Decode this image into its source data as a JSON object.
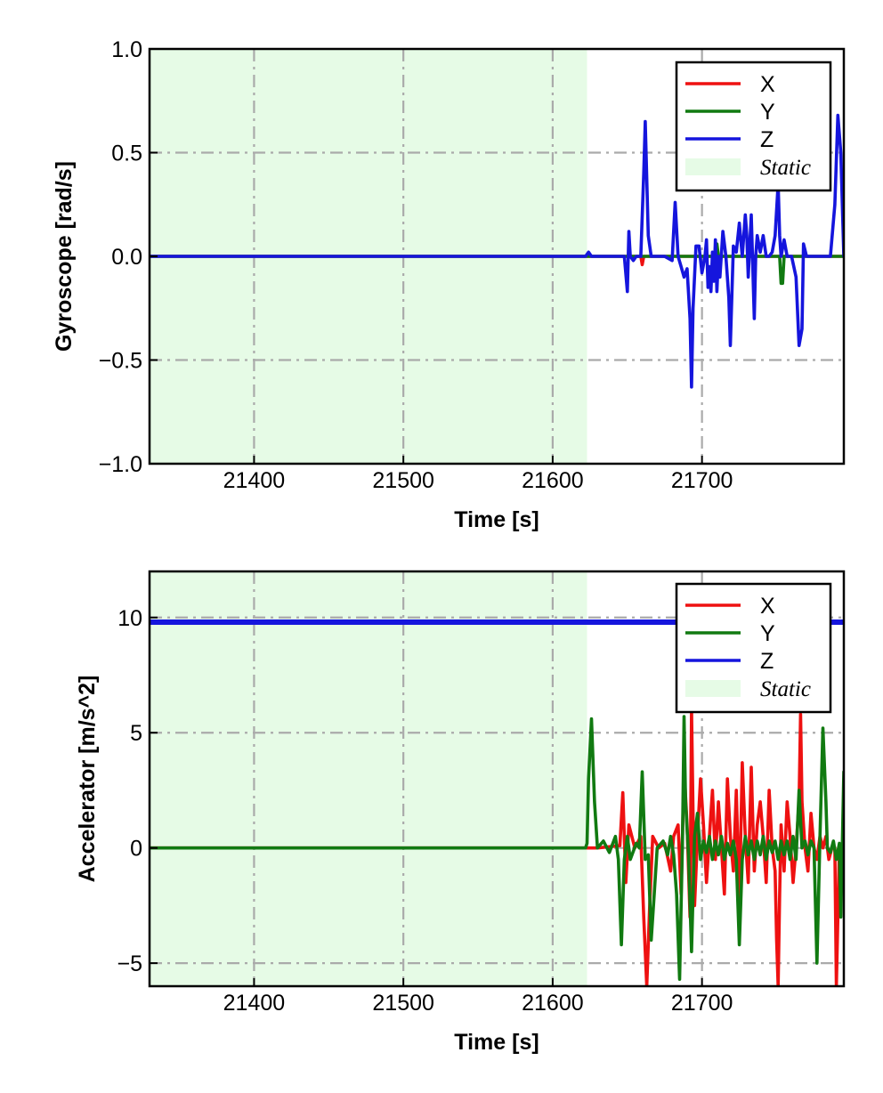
{
  "colors": {
    "x": "#ee1111",
    "y": "#117a11",
    "z": "#1515dd",
    "static": "#e6fbe6",
    "grid": "#aaaaaa"
  },
  "chart_data": [
    {
      "type": "line",
      "xlabel": "Time [s]",
      "ylabel": "Gyroscope [rad/s]",
      "xlim": [
        21330,
        21795
      ],
      "ylim": [
        -1.0,
        1.0
      ],
      "xticks": [
        21400,
        21500,
        21600,
        21700
      ],
      "xtick_labels": [
        "21400",
        "21500",
        "21600",
        "21700"
      ],
      "yticks": [
        1.0,
        0.5,
        0.0,
        -0.5,
        -1.0
      ],
      "ytick_labels": [
        "1.0",
        "0.5",
        "0.0",
        "−0.5",
        "−1.0"
      ],
      "grid": true,
      "legend_position": "top-right",
      "static_region": [
        21330,
        21623
      ],
      "legend": [
        "X",
        "Y",
        "Z",
        "Static"
      ],
      "series": [
        {
          "name": "X",
          "x": [
            21330,
            21623,
            21659,
            21660,
            21661,
            21662,
            21700,
            21750,
            21795
          ],
          "y": [
            0.0,
            0.0,
            0.0,
            -0.04,
            0.0,
            0.0,
            0.0,
            0.0,
            0.0
          ]
        },
        {
          "name": "Y",
          "x": [
            21330,
            21623,
            21709,
            21710,
            21711,
            21752,
            21753,
            21754,
            21755,
            21795
          ],
          "y": [
            0.0,
            0.0,
            0.0,
            0.06,
            0.0,
            0.0,
            -0.13,
            -0.13,
            0.0,
            0.0
          ]
        },
        {
          "name": "Z",
          "x": [
            21330,
            21622,
            21624,
            21626,
            21648,
            21650,
            21651,
            21652,
            21654,
            21656,
            21659,
            21661,
            21662,
            21664,
            21666,
            21670,
            21675,
            21680,
            21682,
            21684,
            21686,
            21688,
            21690,
            21692,
            21693,
            21694,
            21696,
            21698,
            21700,
            21702,
            21703,
            21704,
            21705,
            21706,
            21707,
            21708,
            21709,
            21710,
            21711,
            21712,
            21714,
            21716,
            21718,
            21719,
            21721,
            21723,
            21725,
            21727,
            21729,
            21730,
            21731,
            21733,
            21735,
            21736,
            21737,
            21739,
            21741,
            21743,
            21745,
            21747,
            21749,
            21751,
            21752,
            21753,
            21755,
            21757,
            21760,
            21763,
            21765,
            21767,
            21768,
            21770,
            21772,
            21774,
            21778,
            21782,
            21786,
            21789,
            21791,
            21793,
            21795
          ],
          "y": [
            0.0,
            0.0,
            0.02,
            0.0,
            0.0,
            -0.17,
            0.12,
            0.0,
            -0.02,
            0.0,
            0.0,
            0.4,
            0.65,
            0.1,
            0.0,
            0.0,
            0.0,
            -0.02,
            0.26,
            0.0,
            -0.05,
            -0.1,
            -0.06,
            -0.3,
            -0.63,
            -0.25,
            0.05,
            0.05,
            -0.08,
            0.0,
            0.08,
            -0.15,
            -0.05,
            -0.17,
            0.02,
            -0.12,
            0.08,
            -0.17,
            0.0,
            -0.1,
            0.12,
            0.0,
            -0.2,
            -0.43,
            0.05,
            0.02,
            0.16,
            0.0,
            0.2,
            0.1,
            -0.1,
            0.2,
            -0.3,
            0.0,
            0.1,
            0.02,
            0.1,
            0.0,
            0.0,
            0.02,
            0.1,
            0.35,
            0.1,
            0.0,
            0.08,
            0.0,
            0.0,
            -0.1,
            -0.43,
            -0.35,
            0.06,
            0.0,
            0.0,
            0.0,
            0.0,
            0.0,
            0.0,
            0.25,
            0.68,
            0.5,
            0.0
          ]
        }
      ]
    },
    {
      "type": "line",
      "xlabel": "Time [s]",
      "ylabel": "Accelerator [m/s^2]",
      "xlim": [
        21330,
        21795
      ],
      "ylim": [
        -6.0,
        12.0
      ],
      "xticks": [
        21400,
        21500,
        21600,
        21700
      ],
      "xtick_labels": [
        "21400",
        "21500",
        "21600",
        "21700"
      ],
      "yticks": [
        10,
        5,
        0,
        -5
      ],
      "ytick_labels": [
        "10",
        "5",
        "0",
        "−5"
      ],
      "grid": true,
      "legend_position": "top-right",
      "static_region": [
        21330,
        21623
      ],
      "legend": [
        "X",
        "Y",
        "Z",
        "Static"
      ],
      "series": [
        {
          "name": "X",
          "x": [
            21330,
            21623,
            21630,
            21645,
            21647,
            21649,
            21651,
            21655,
            21659,
            21661,
            21663,
            21665,
            21667,
            21671,
            21675,
            21679,
            21681,
            21684,
            21686,
            21688,
            21690,
            21692,
            21693,
            21694,
            21695,
            21697,
            21699,
            21701,
            21703,
            21705,
            21707,
            21709,
            21711,
            21713,
            21715,
            21717,
            21719,
            21721,
            21723,
            21725,
            21727,
            21729,
            21731,
            21733,
            21735,
            21737,
            21739,
            21741,
            21743,
            21745,
            21747,
            21749,
            21750,
            21751,
            21752,
            21753,
            21755,
            21757,
            21759,
            21761,
            21763,
            21765,
            21766,
            21767,
            21769,
            21771,
            21773,
            21775,
            21777,
            21779,
            21781,
            21783,
            21785,
            21787,
            21789,
            21790,
            21791,
            21792,
            21793,
            21795
          ],
          "y": [
            0.0,
            0.0,
            0.0,
            0.1,
            2.4,
            -1.5,
            1.0,
            0.0,
            0.5,
            -3.0,
            -6.0,
            -2.5,
            0.5,
            0.0,
            0.2,
            -1.0,
            0.5,
            1.0,
            -2.0,
            3.5,
            1.0,
            -3.0,
            6.0,
            1.5,
            -2.5,
            0.5,
            3.0,
            1.0,
            -1.5,
            0.5,
            2.5,
            -0.5,
            2.0,
            0.0,
            -2.0,
            3.0,
            0.5,
            -1.0,
            2.5,
            -2.5,
            3.7,
            0.5,
            -1.5,
            3.5,
            -1.0,
            1.0,
            2.0,
            0.5,
            -1.5,
            2.5,
            0.0,
            -1.0,
            -4.0,
            -6.0,
            -2.0,
            1.0,
            -1.0,
            2.0,
            0.5,
            -1.5,
            0.0,
            2.0,
            5.8,
            2.0,
            0.0,
            -1.0,
            1.5,
            0.0,
            -0.5,
            0.5,
            0.0,
            0.5,
            -0.5,
            0.0,
            0.0,
            -6.0,
            -3.0,
            0.0,
            0.0,
            0.0
          ]
        },
        {
          "name": "Y",
          "x": [
            21330,
            21622,
            21623,
            21624,
            21626,
            21628,
            21630,
            21634,
            21638,
            21642,
            21644,
            21646,
            21648,
            21650,
            21652,
            21656,
            21658,
            21660,
            21662,
            21664,
            21666,
            21668,
            21670,
            21674,
            21677,
            21679,
            21681,
            21683,
            21685,
            21687,
            21688,
            21689,
            21691,
            21693,
            21695,
            21697,
            21699,
            21701,
            21703,
            21705,
            21707,
            21709,
            21711,
            21713,
            21715,
            21717,
            21719,
            21721,
            21723,
            21725,
            21727,
            21729,
            21731,
            21733,
            21735,
            21737,
            21739,
            21741,
            21743,
            21745,
            21747,
            21749,
            21751,
            21753,
            21755,
            21757,
            21759,
            21761,
            21763,
            21765,
            21767,
            21769,
            21771,
            21773,
            21775,
            21777,
            21779,
            21781,
            21783,
            21784,
            21786,
            21788,
            21790,
            21792,
            21793,
            21795
          ],
          "y": [
            0.0,
            0.0,
            0.2,
            3.0,
            5.6,
            2.0,
            0.0,
            0.3,
            -0.2,
            0.5,
            -0.5,
            -4.2,
            -0.5,
            0.5,
            -0.5,
            0.2,
            0.0,
            3.3,
            -0.5,
            -0.3,
            -4.0,
            -2.0,
            0.0,
            0.3,
            -0.3,
            0.5,
            -0.3,
            -2.0,
            -5.7,
            0.5,
            5.7,
            2.0,
            -0.3,
            -4.5,
            0.5,
            1.5,
            -0.5,
            0.3,
            -0.2,
            0.5,
            -0.5,
            0.3,
            -0.3,
            0.5,
            -0.5,
            0.2,
            -0.3,
            0.3,
            -0.5,
            -4.2,
            -0.5,
            0.5,
            -0.3,
            0.3,
            -0.5,
            0.3,
            -0.3,
            0.5,
            -0.5,
            0.3,
            -0.2,
            0.3,
            -0.5,
            0.3,
            -0.3,
            0.3,
            -0.5,
            0.5,
            -0.5,
            2.5,
            0.0,
            0.3,
            -0.3,
            0.3,
            0.0,
            -5.0,
            0.5,
            5.2,
            2.0,
            0.0,
            -0.2,
            0.3,
            -0.5,
            0.2,
            -3.0,
            3.3
          ]
        },
        {
          "name": "Z",
          "x": [
            21330,
            21795
          ],
          "y": [
            9.8,
            9.8
          ]
        }
      ]
    }
  ]
}
